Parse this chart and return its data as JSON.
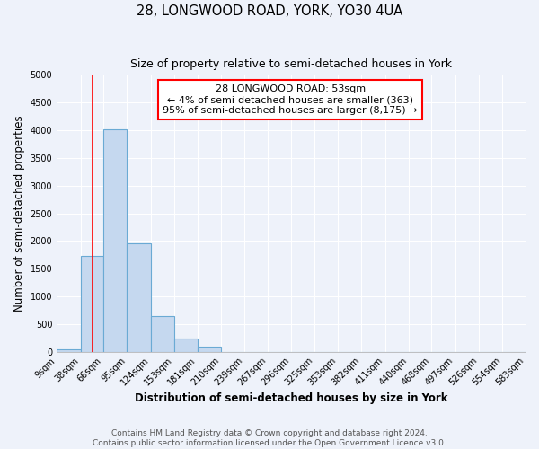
{
  "title": "28, LONGWOOD ROAD, YORK, YO30 4UA",
  "subtitle": "Size of property relative to semi-detached houses in York",
  "xlabel": "Distribution of semi-detached houses by size in York",
  "ylabel": "Number of semi-detached properties",
  "bin_edges": [
    9,
    38,
    66,
    95,
    124,
    153,
    181,
    210,
    239,
    267,
    296,
    325,
    353,
    382,
    411,
    440,
    468,
    497,
    526,
    554,
    583
  ],
  "bin_labels": [
    "9sqm",
    "38sqm",
    "66sqm",
    "95sqm",
    "124sqm",
    "153sqm",
    "181sqm",
    "210sqm",
    "239sqm",
    "267sqm",
    "296sqm",
    "325sqm",
    "353sqm",
    "382sqm",
    "411sqm",
    "440sqm",
    "468sqm",
    "497sqm",
    "526sqm",
    "554sqm",
    "583sqm"
  ],
  "counts": [
    50,
    1730,
    4020,
    1950,
    650,
    240,
    90,
    0,
    0,
    0,
    0,
    0,
    0,
    0,
    0,
    0,
    0,
    0,
    0,
    0
  ],
  "bar_color": "#c5d8ef",
  "bar_edge_color": "#6aaad4",
  "property_line_x": 53,
  "property_line_color": "red",
  "annotation_title": "28 LONGWOOD ROAD: 53sqm",
  "annotation_line1": "← 4% of semi-detached houses are smaller (363)",
  "annotation_line2": "95% of semi-detached houses are larger (8,175) →",
  "annotation_box_color": "white",
  "annotation_box_edge_color": "red",
  "ylim": [
    0,
    5000
  ],
  "yticks": [
    0,
    500,
    1000,
    1500,
    2000,
    2500,
    3000,
    3500,
    4000,
    4500,
    5000
  ],
  "background_color": "#eef2fa",
  "grid_color": "#ffffff",
  "title_fontsize": 10.5,
  "subtitle_fontsize": 9,
  "axis_label_fontsize": 8.5,
  "tick_fontsize": 7,
  "annotation_fontsize": 8,
  "footer_fontsize": 6.5
}
